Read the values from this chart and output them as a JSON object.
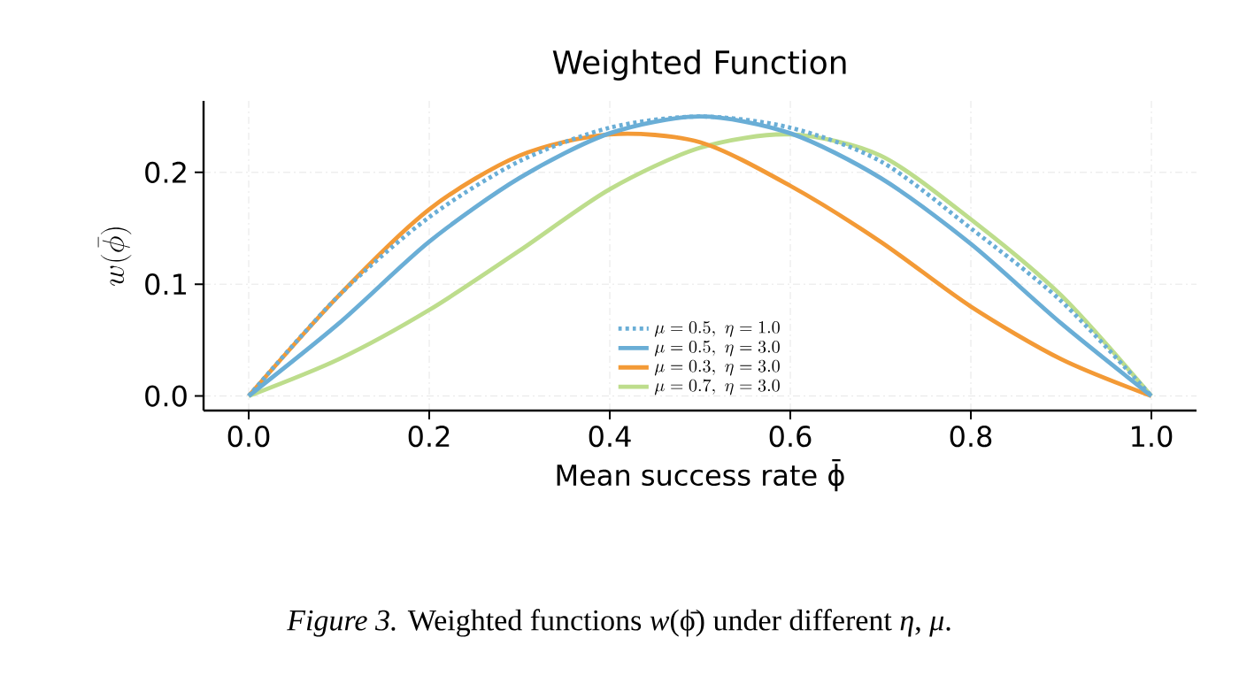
{
  "chart_data": {
    "type": "line",
    "title": "Weighted Function",
    "xlabel": "Mean success rate ϕ̄",
    "ylabel": "w(\\bar{\\phi})",
    "x": [
      0,
      0.1,
      0.2,
      0.3,
      0.4,
      0.5,
      0.6,
      0.7,
      0.8,
      0.9,
      1.0
    ],
    "series": [
      {
        "name": "\\mu=0.5,\\ \\eta=1.0",
        "color": "#6aaed6",
        "line_style": "dotted",
        "values": [
          0,
          0.09,
          0.16,
          0.21,
          0.24,
          0.25,
          0.24,
          0.21,
          0.15,
          0.085,
          0
        ]
      },
      {
        "name": "\\mu=0.5,\\ \\eta=3.0",
        "color": "#6aaed6",
        "line_style": "solid",
        "values": [
          0,
          0.065,
          0.138,
          0.195,
          0.235,
          0.25,
          0.235,
          0.195,
          0.136,
          0.065,
          0
        ]
      },
      {
        "name": "\\mu=0.3,\\ \\eta=3.0",
        "color": "#f39a36",
        "line_style": "solid",
        "values": [
          0,
          0.09,
          0.167,
          0.215,
          0.234,
          0.227,
          0.188,
          0.138,
          0.08,
          0.033,
          0
        ]
      },
      {
        "name": "\\mu=0.7,\\ \\eta=3.0",
        "color": "#bddd8c",
        "line_style": "solid",
        "values": [
          0,
          0.033,
          0.077,
          0.13,
          0.185,
          0.222,
          0.234,
          0.215,
          0.158,
          0.09,
          0
        ]
      }
    ],
    "xlim": [
      -0.05,
      1.05
    ],
    "ylim": [
      -0.013,
      0.264
    ],
    "xticks": [
      {
        "value": 0,
        "label": "0.0"
      },
      {
        "value": 0.2,
        "label": "0.2"
      },
      {
        "value": 0.4,
        "label": "0.4"
      },
      {
        "value": 0.6,
        "label": "0.6"
      },
      {
        "value": 0.8,
        "label": "0.8"
      },
      {
        "value": 1.0,
        "label": "1.0"
      }
    ],
    "yticks": [
      {
        "value": 0,
        "label": "0.0"
      },
      {
        "value": 0.1,
        "label": "0.1"
      },
      {
        "value": 0.2,
        "label": "0.2"
      }
    ],
    "grid": true,
    "legend": "bottom",
    "marker": "none",
    "annotations": [
      "*Figure 3.* Weighted functions *w*(ϕ̄) under different *η*, *μ*."
    ]
  }
}
